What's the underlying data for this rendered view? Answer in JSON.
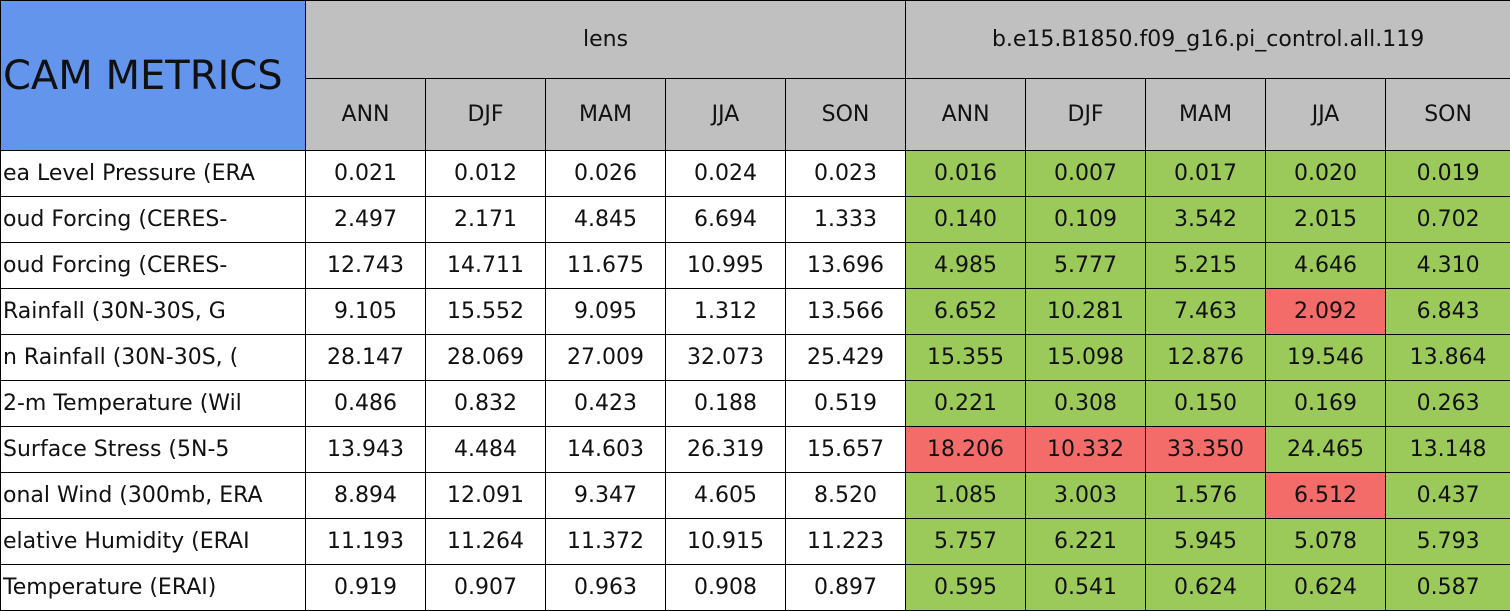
{
  "table": {
    "corner": "CAM METRICS",
    "groups": [
      "lens",
      "b.e15.B1850.f09_g16.pi_control.all.119"
    ],
    "seasons": [
      "ANN",
      "DJF",
      "MAM",
      "JJA",
      "SON"
    ],
    "colors": {
      "green": "#9bc95a",
      "red": "#f46c6a"
    },
    "rows": [
      {
        "label": "ea Level Pressure (ERA",
        "lens": [
          "0.021",
          "0.012",
          "0.026",
          "0.024",
          "0.023"
        ],
        "control": [
          "0.016",
          "0.007",
          "0.017",
          "0.020",
          "0.019"
        ],
        "control_colors": [
          "green",
          "green",
          "green",
          "green",
          "green"
        ]
      },
      {
        "label": "oud Forcing (CERES-",
        "lens": [
          "2.497",
          "2.171",
          "4.845",
          "6.694",
          "1.333"
        ],
        "control": [
          "0.140",
          "0.109",
          "3.542",
          "2.015",
          "0.702"
        ],
        "control_colors": [
          "green",
          "green",
          "green",
          "green",
          "green"
        ]
      },
      {
        "label": "oud Forcing (CERES-",
        "lens": [
          "12.743",
          "14.711",
          "11.675",
          "10.995",
          "13.696"
        ],
        "control": [
          "4.985",
          "5.777",
          "5.215",
          "4.646",
          "4.310"
        ],
        "control_colors": [
          "green",
          "green",
          "green",
          "green",
          "green"
        ]
      },
      {
        "label": "Rainfall (30N-30S, G",
        "lens": [
          "9.105",
          "15.552",
          "9.095",
          "1.312",
          "13.566"
        ],
        "control": [
          "6.652",
          "10.281",
          "7.463",
          "2.092",
          "6.843"
        ],
        "control_colors": [
          "green",
          "green",
          "green",
          "red",
          "green"
        ]
      },
      {
        "label": "n Rainfall (30N-30S, (",
        "lens": [
          "28.147",
          "28.069",
          "27.009",
          "32.073",
          "25.429"
        ],
        "control": [
          "15.355",
          "15.098",
          "12.876",
          "19.546",
          "13.864"
        ],
        "control_colors": [
          "green",
          "green",
          "green",
          "green",
          "green"
        ]
      },
      {
        "label": "2-m Temperature (Wil",
        "lens": [
          "0.486",
          "0.832",
          "0.423",
          "0.188",
          "0.519"
        ],
        "control": [
          "0.221",
          "0.308",
          "0.150",
          "0.169",
          "0.263"
        ],
        "control_colors": [
          "green",
          "green",
          "green",
          "green",
          "green"
        ]
      },
      {
        "label": "Surface Stress (5N-5",
        "lens": [
          "13.943",
          "4.484",
          "14.603",
          "26.319",
          "15.657"
        ],
        "control": [
          "18.206",
          "10.332",
          "33.350",
          "24.465",
          "13.148"
        ],
        "control_colors": [
          "red",
          "red",
          "red",
          "green",
          "green"
        ]
      },
      {
        "label": "onal Wind (300mb, ERA",
        "lens": [
          "8.894",
          "12.091",
          "9.347",
          "4.605",
          "8.520"
        ],
        "control": [
          "1.085",
          "3.003",
          "1.576",
          "6.512",
          "0.437"
        ],
        "control_colors": [
          "green",
          "green",
          "green",
          "red",
          "green"
        ]
      },
      {
        "label": "elative Humidity (ERAI",
        "lens": [
          "11.193",
          "11.264",
          "11.372",
          "10.915",
          "11.223"
        ],
        "control": [
          "5.757",
          "6.221",
          "5.945",
          "5.078",
          "5.793"
        ],
        "control_colors": [
          "green",
          "green",
          "green",
          "green",
          "green"
        ]
      },
      {
        "label": "Temperature (ERAI)",
        "lens": [
          "0.919",
          "0.907",
          "0.963",
          "0.908",
          "0.897"
        ],
        "control": [
          "0.595",
          "0.541",
          "0.624",
          "0.624",
          "0.587"
        ],
        "control_colors": [
          "green",
          "green",
          "green",
          "green",
          "green"
        ]
      }
    ]
  }
}
